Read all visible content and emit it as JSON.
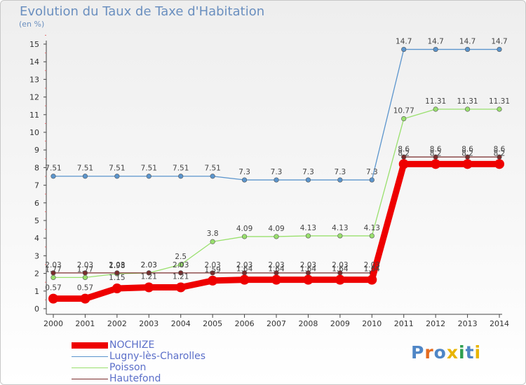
{
  "header": {
    "title": "Evolution du Taux de Taxe d'Habitation",
    "unit": "(en %)"
  },
  "logo": {
    "text": "Proxiti"
  },
  "chart_data": {
    "type": "line",
    "title": "Evolution du Taux de Taxe d'Habitation",
    "subtitle": "(en %)",
    "xlabel": "",
    "ylabel": "",
    "x": [
      "2000",
      "2001",
      "2002",
      "2003",
      "2004",
      "2005",
      "2006",
      "2007",
      "2008",
      "2009",
      "2010",
      "2011",
      "2012",
      "2013",
      "2014"
    ],
    "ylim": [
      0,
      15
    ],
    "yticks": [
      0,
      1,
      2,
      3,
      4,
      5,
      6,
      7,
      8,
      9,
      10,
      11,
      12,
      13,
      14,
      15
    ],
    "grid": false,
    "legend_position": "bottom-left",
    "series": [
      {
        "name": "NOCHIZE",
        "color": "#ee0000",
        "values": [
          0.57,
          0.57,
          1.15,
          1.21,
          1.21,
          1.59,
          1.64,
          1.64,
          1.64,
          1.64,
          1.64,
          8.2,
          8.2,
          8.2,
          8.2
        ],
        "labels": [
          "0.57",
          "0.57",
          "1.15",
          "1.21",
          "1.21",
          "1.59",
          "1.64",
          "1.64",
          "1.64",
          "1.64",
          "1.64",
          "8.2",
          "8.2",
          "8.2",
          "8.2"
        ]
      },
      {
        "name": "Lugny-lès-Charolles",
        "color": "#5b95cd",
        "values": [
          7.51,
          7.51,
          7.51,
          7.51,
          7.51,
          7.51,
          7.3,
          7.3,
          7.3,
          7.3,
          7.3,
          14.7,
          14.7,
          14.7,
          14.7
        ],
        "labels": [
          "7.51",
          "7.51",
          "7.51",
          "7.51",
          "7.51",
          "7.51",
          "7.3",
          "7.3",
          "7.3",
          "7.3",
          "7.3",
          "14.7",
          "14.7",
          "14.7",
          "14.7"
        ]
      },
      {
        "name": "Poisson",
        "color": "#99e06d",
        "values": [
          1.77,
          1.77,
          1.98,
          2.03,
          2.5,
          3.8,
          4.09,
          4.09,
          4.13,
          4.13,
          4.13,
          10.77,
          11.31,
          11.31,
          11.31
        ],
        "labels": [
          "1.77",
          "1.77",
          "1.98",
          "2.03",
          "2.5",
          "3.8",
          "4.09",
          "4.09",
          "4.13",
          "4.13",
          "4.13",
          "10.77",
          "11.31",
          "11.31",
          "11.31"
        ]
      },
      {
        "name": "Hautefond",
        "color": "#7a2c2c",
        "values": [
          2.03,
          2.03,
          2.03,
          2.03,
          2.03,
          2.03,
          2.03,
          2.03,
          2.03,
          2.03,
          2.03,
          8.6,
          8.6,
          8.6,
          8.6
        ],
        "labels": [
          "2.03",
          "2.03",
          "2.03",
          "2.03",
          "2.03",
          "2.03",
          "2.03",
          "2.03",
          "2.03",
          "2.03",
          "2.03",
          "8.6",
          "8.6",
          "8.6",
          "8.6"
        ]
      }
    ]
  }
}
